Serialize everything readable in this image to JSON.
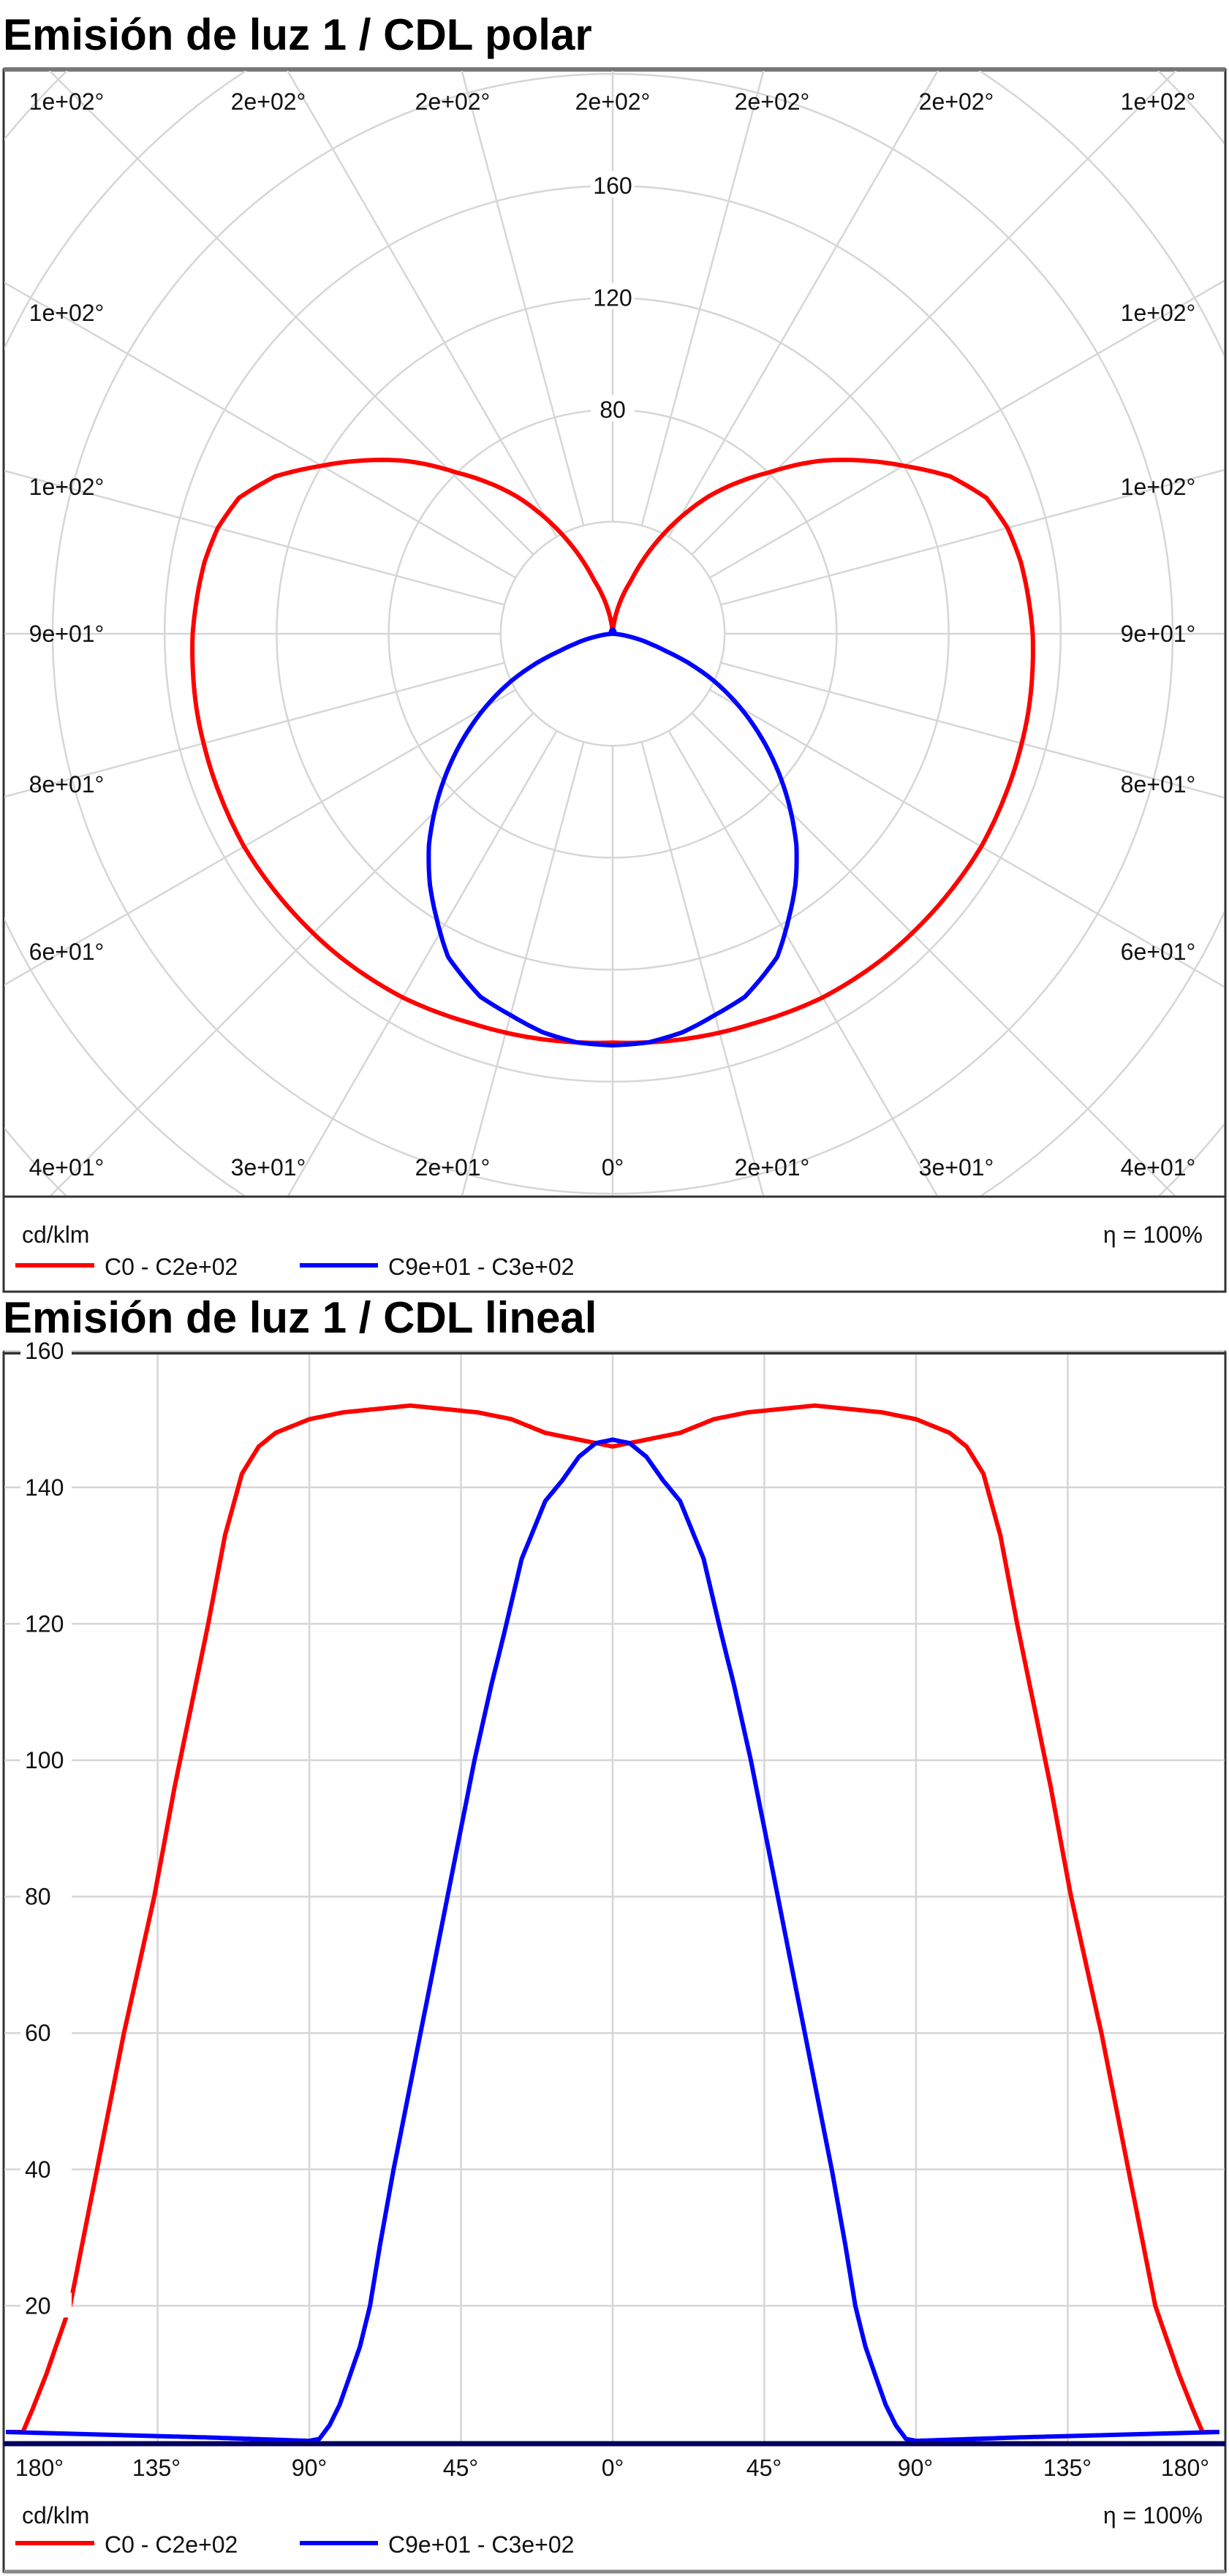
{
  "chart_data": [
    {
      "type": "polar",
      "title": "Emisión de luz 1 / CDL polar",
      "unit": "cd/klm",
      "efficiency": "η = 100%",
      "radial_ticks": [
        "80",
        "120",
        "160"
      ],
      "radial_grid_values": [
        40,
        80,
        120,
        160,
        200,
        240,
        280,
        320
      ],
      "angle_labels": {
        "top": [
          "1e+02°",
          "2e+02°",
          "2e+02°",
          "2e+02°",
          "2e+02°",
          "2e+02°",
          "1e+02°"
        ],
        "left": [
          "1e+02°",
          "1e+02°",
          "9e+01°",
          "8e+01°",
          "6e+01°"
        ],
        "right": [
          "1e+02°",
          "1e+02°",
          "9e+01°",
          "8e+01°",
          "6e+01°"
        ],
        "bottom": [
          "4e+01°",
          "3e+01°",
          "2e+01°",
          "0°",
          "2e+01°",
          "3e+01°",
          "4e+01°"
        ]
      },
      "series": [
        {
          "name": "C0 - C2e+02",
          "color": "#ff0000",
          "gamma": [
            0,
            10,
            20,
            30,
            40,
            50,
            60,
            70,
            80,
            90,
            95,
            100,
            105,
            110,
            115,
            120,
            125,
            130,
            136,
            145,
            153,
            161,
            168,
            172,
            175,
            180
          ],
          "values": [
            146,
            147,
            148,
            150,
            151,
            151.5,
            152,
            151.5,
            151,
            150,
            149,
            148,
            146,
            142,
            133,
            120,
            108,
            96,
            80,
            60,
            40,
            20,
            10,
            5,
            1.5,
            1.5
          ]
        },
        {
          "name": "C9e+01 - C3e+02",
          "color": "#0000ff",
          "gamma": [
            0,
            5,
            10,
            15,
            20,
            27,
            32,
            36,
            41,
            45,
            49,
            53,
            57,
            61,
            65,
            69,
            72,
            75,
            78,
            81,
            84,
            87,
            90,
            120,
            150,
            180
          ],
          "values": [
            147,
            146.5,
            144.5,
            141,
            138,
            129.5,
            119,
            111,
            100,
            90,
            80,
            70,
            60,
            50,
            40,
            29,
            20,
            14,
            9.7,
            5.5,
            2.5,
            0.5,
            0.2,
            0.7,
            1.1,
            1.5
          ]
        }
      ]
    },
    {
      "type": "line",
      "title": "Emisión de luz 1 / CDL lineal",
      "unit": "cd/klm",
      "efficiency": "η = 100%",
      "xlim": [
        -180,
        180
      ],
      "ylim": [
        0,
        160
      ],
      "x_ticks": [
        -180,
        -135,
        -90,
        -45,
        0,
        45,
        90,
        135,
        180
      ],
      "x_tick_labels": [
        "180°",
        "135°",
        "90°",
        "45°",
        "0°",
        "45°",
        "90°",
        "135°",
        "180°"
      ],
      "y_ticks": [
        20,
        40,
        60,
        80,
        100,
        120,
        140,
        160
      ],
      "y_tick_labels": [
        "20",
        "40",
        "60",
        "80",
        "100",
        "120",
        "140",
        "160"
      ],
      "grid": true,
      "legend": "bottom-left",
      "series_ref": "same data as polar series, mirrored for negative angles"
    }
  ]
}
